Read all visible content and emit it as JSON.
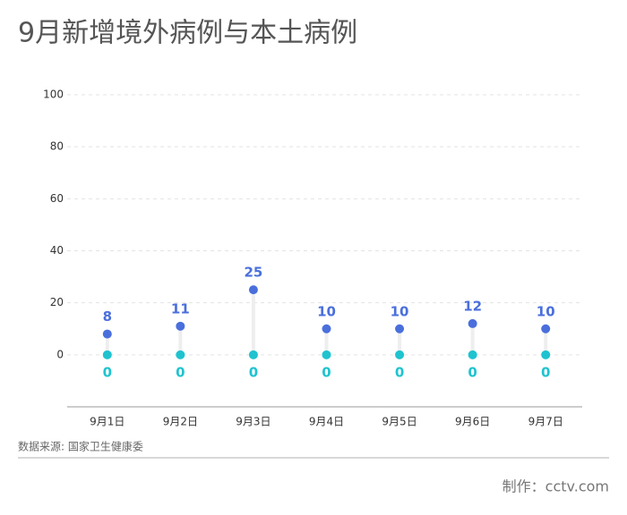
{
  "chart_data": {
    "type": "dumbbell",
    "title": "9月新增境外病例与本土病例",
    "categories": [
      "9月1日",
      "9月2日",
      "9月3日",
      "9月4日",
      "9月5日",
      "9月6日",
      "9月7日"
    ],
    "series": [
      {
        "color": "#4a6fdc",
        "values": [
          8,
          11,
          25,
          10,
          10,
          12,
          10
        ]
      },
      {
        "color": "#1fc3cf",
        "values": [
          0,
          0,
          0,
          0,
          0,
          0,
          0
        ]
      }
    ],
    "ylim": [
      -20,
      100
    ],
    "yticks": [
      0,
      20,
      40,
      60,
      80,
      100
    ],
    "grid": true,
    "source": "数据来源: 国家卫生健康委",
    "credit": "制作：cctv.com"
  }
}
